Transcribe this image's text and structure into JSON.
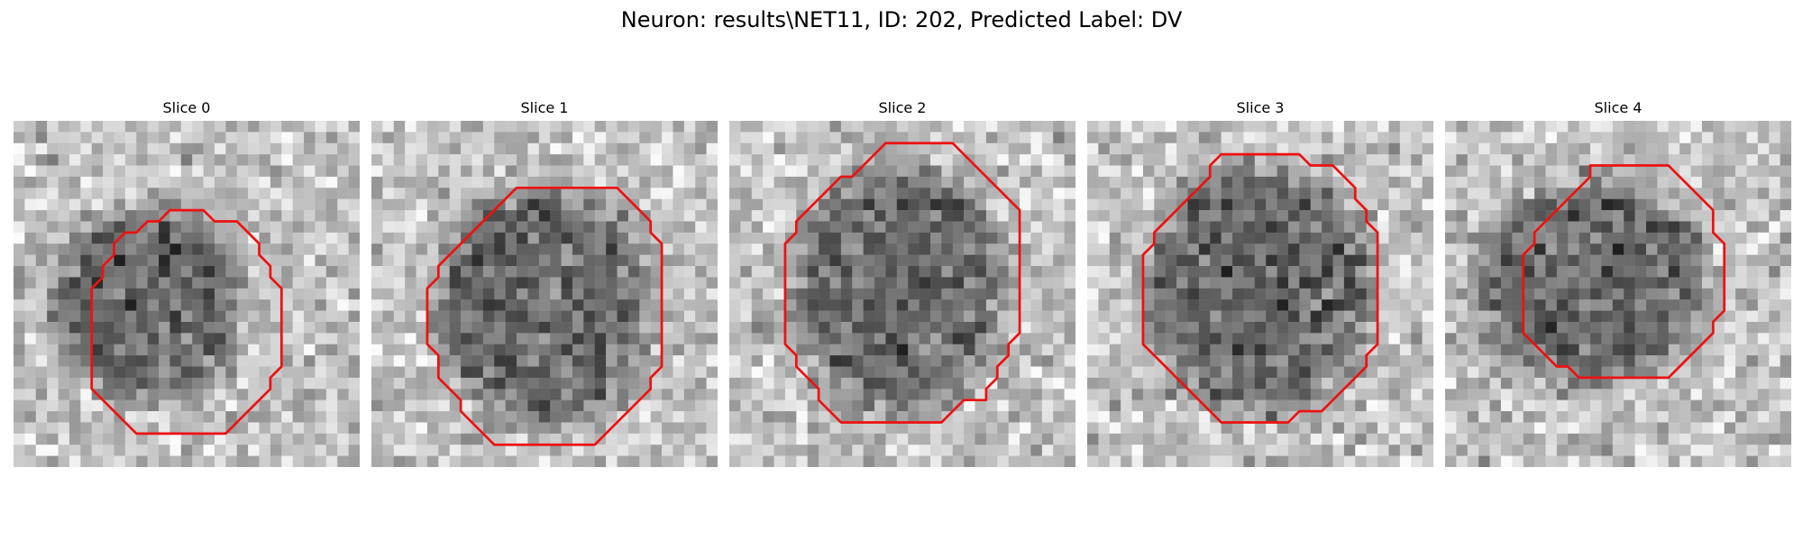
{
  "figure": {
    "title": "Neuron: results\\NET11, ID: 202, Predicted Label: DV",
    "contour_color": "#ee1111"
  },
  "slices": [
    {
      "label": "Slice 0"
    },
    {
      "label": "Slice 1"
    },
    {
      "label": "Slice 2"
    },
    {
      "label": "Slice 3"
    },
    {
      "label": "Slice 4"
    }
  ]
}
